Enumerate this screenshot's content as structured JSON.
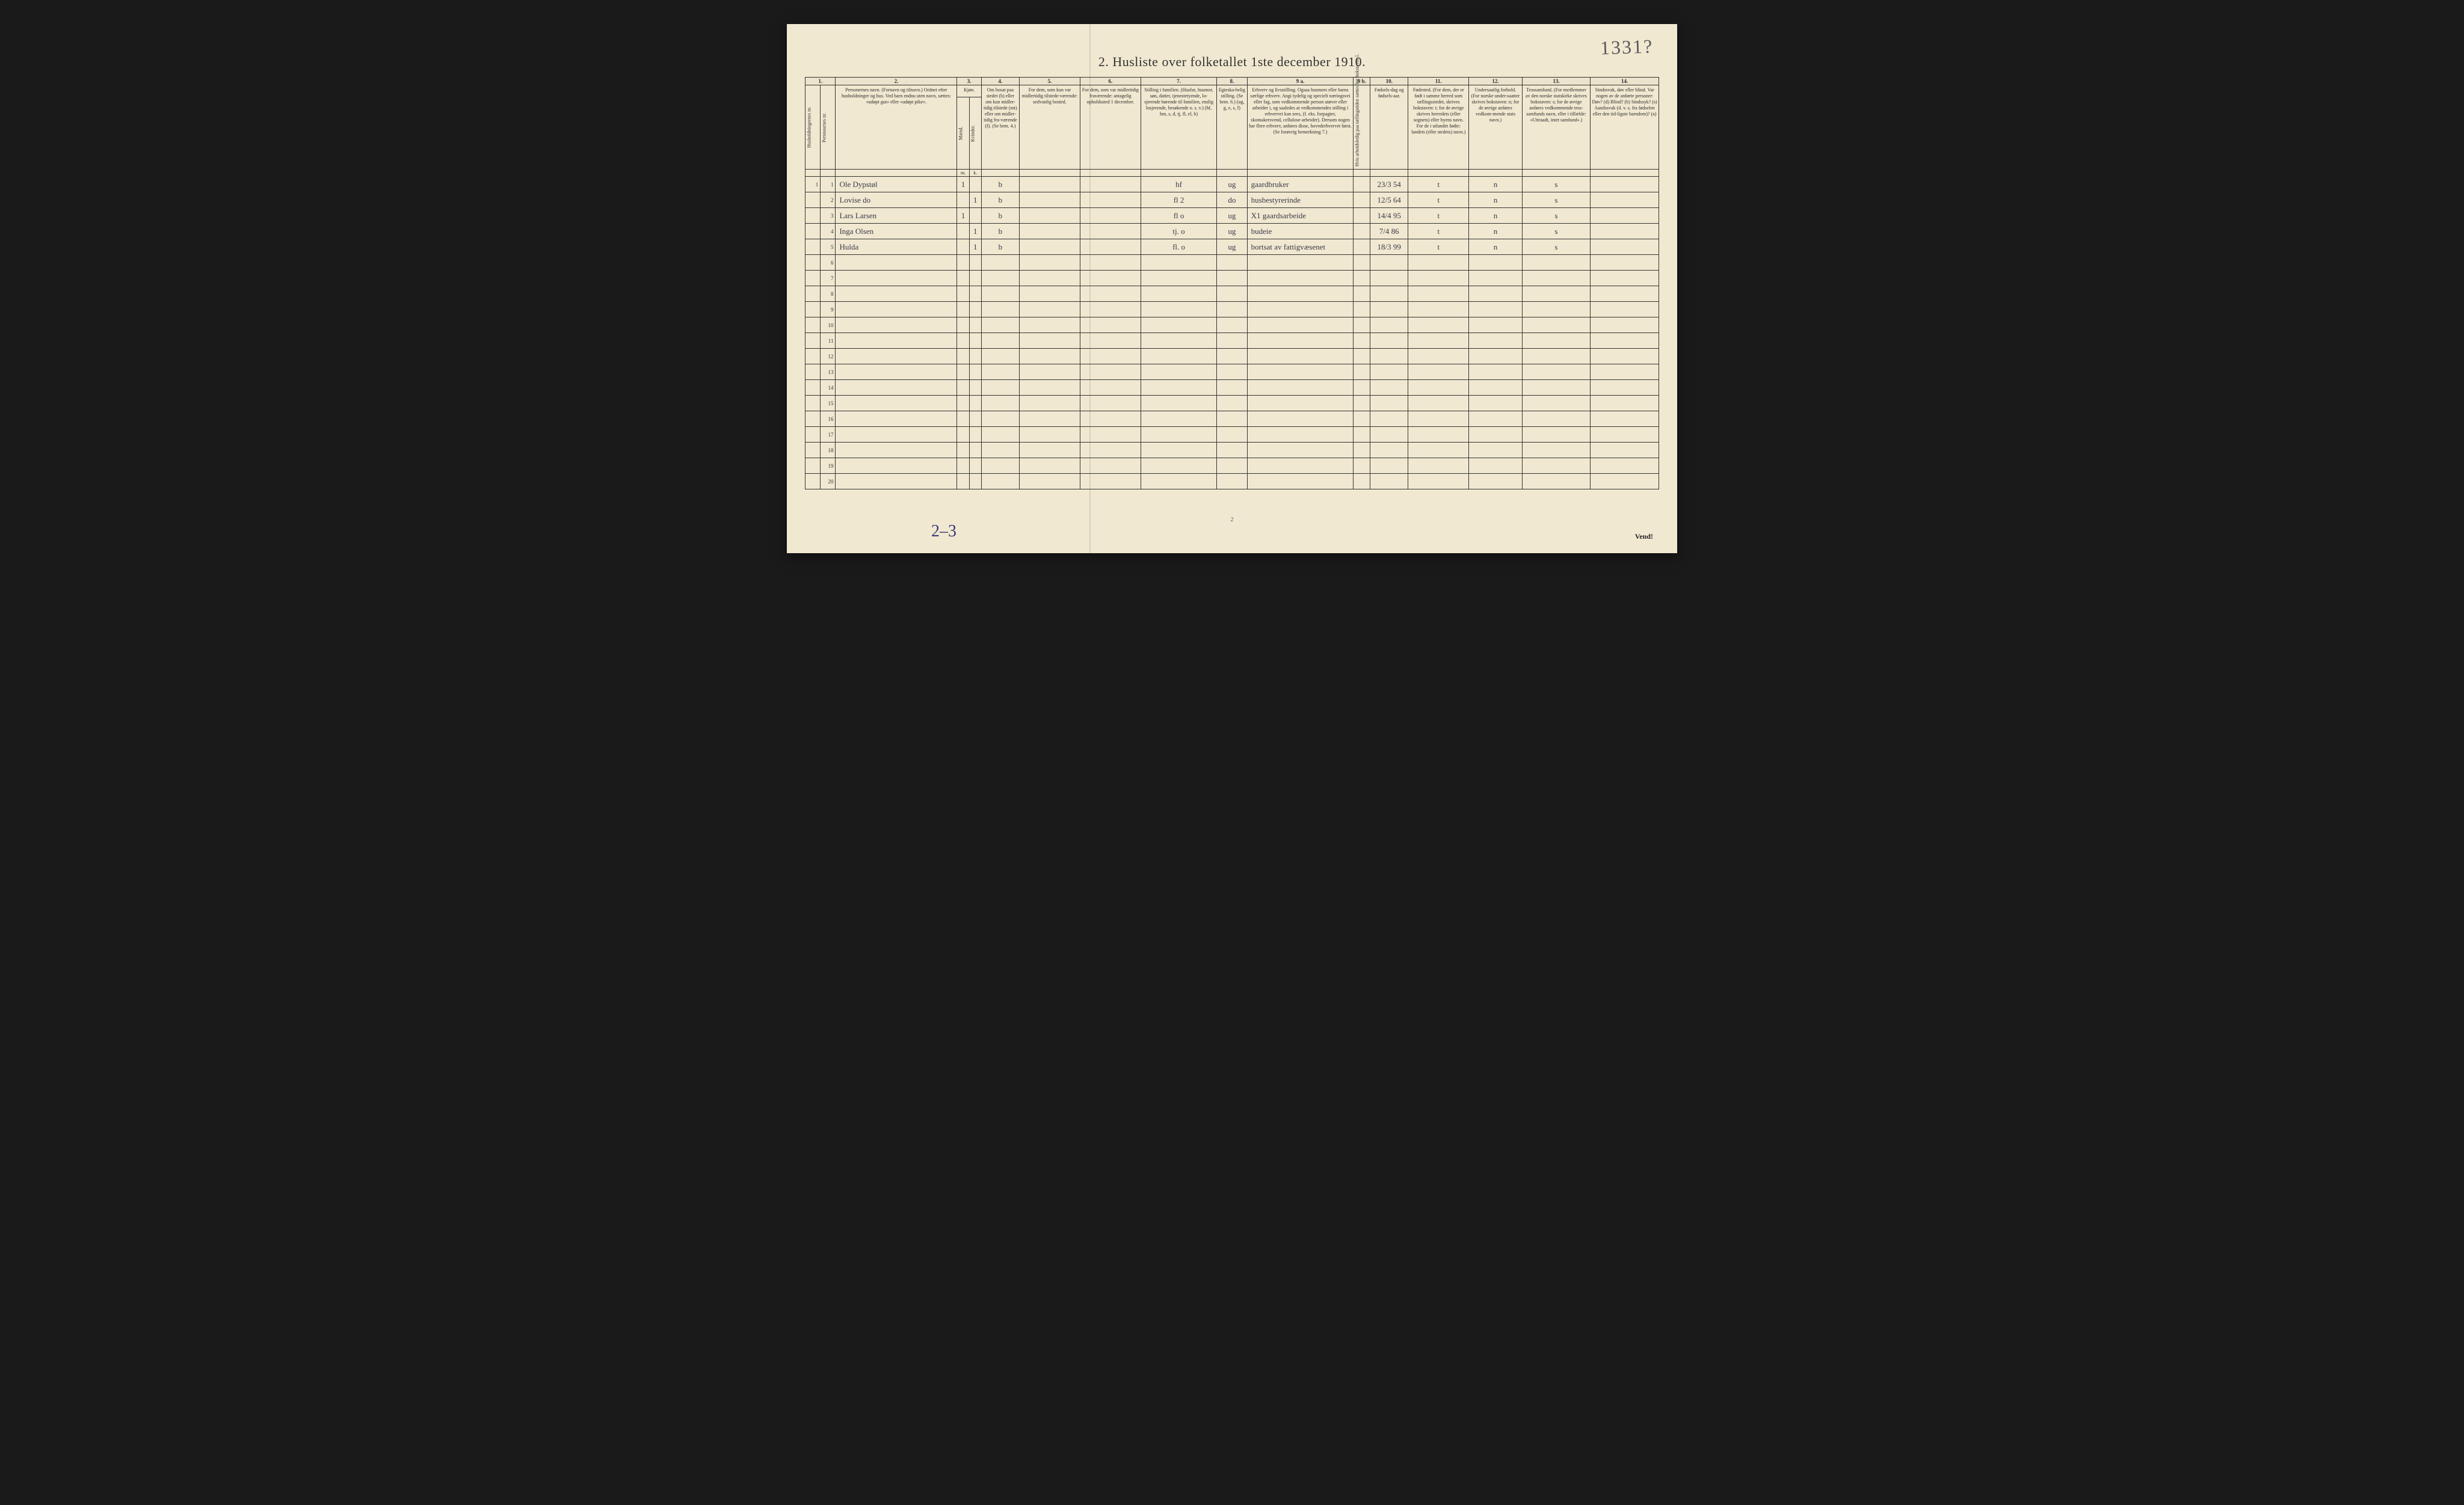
{
  "title": "2.  Husliste over folketallet 1ste december 1910.",
  "annotation_top_right": "1331?",
  "footer_annotation": "2–3",
  "page_number": "2",
  "vend": "Vend!",
  "colors": {
    "paper": "#f0e8d0",
    "ink": "#2a2a2a",
    "handwriting": "#3a3a4a",
    "blue_pencil": "#3a3a7a",
    "border": "#333333",
    "background": "#1a1a1a"
  },
  "typography": {
    "title_fontsize": 22,
    "header_fontsize": 8,
    "data_fontsize": 13,
    "annotation_fontsize": 32
  },
  "columns": {
    "nums": [
      "1.",
      "2.",
      "3.",
      "4.",
      "5.",
      "6.",
      "7.",
      "8.",
      "9 a.",
      "9 b.",
      "10.",
      "11.",
      "12.",
      "13.",
      "14."
    ],
    "widths_pct": [
      2,
      2,
      16,
      1.6,
      1.6,
      5,
      8,
      8,
      10,
      4,
      14,
      2.2,
      5,
      8,
      7,
      9,
      9
    ],
    "headers": {
      "c1a": "Husholdningernes nr.",
      "c1b": "Persnournes nr.",
      "c2": "Personernes navn.\n(Fornavn og tilnavn.)\nOrdnet efter husholdninger og hus.\nVed barn endnu uten navn, sættes: «udøpt gut» eller «udøpt pike».",
      "c3": "Kjøn.",
      "c3m": "Mænd.",
      "c3k": "Kvinder.",
      "c3sub_m": "m.",
      "c3sub_k": "k.",
      "c4": "Om bosat paa stedet (b) eller om kun midler-tidig tilstede (mt) eller om midler-tidig fra-værende (f).\n(Se bem. 4.)",
      "c5": "For dem, som kun var midlertidig tilstede-værende:\nsedvanlig bosted.",
      "c6": "For dem, som var midlertidig fraværende:\nantagelig opholdssted 1 december.",
      "c7": "Stilling i familien.\n(Husfar, husmor, søn, datter, tjenestetyende, lo-sjerende hørende til familien, enslig losjerende, besøkende o. s. v.)\n(hf, hm, s, d, tj, fl, el, b)",
      "c8": "Egteska-belig stilling.\n(Se bem. 6.)\n(ug, g, e, s, f)",
      "c9a": "Erhverv og livsstilling.\nOgsaa husmors eller barns særlige erhverv.\nAngi tydelig og specielt næringsvei eller fag, som vedkommende person utøver eller arbeider i, og saaledes at vedkommendes stilling i erhvervet kan sees, (f. eks. forpagter, skomakersvend, cellulose-arbeider). Dersom nogen har flere erhverv, anføres disse, hovederhvervet først.\n(Se forøvrig bemerkning 7.)",
      "c9b": "Hvis arbeidsledig paa tællingstiden sættes her bokstaven l.",
      "c10": "Fødsels-dag og fødsels-aar.",
      "c11": "Fødested.\n(For dem, der er født i samme herred som tællingsstedet, skrives bokstaven: t; for de øvrige skrives herredets (eller sognets) eller byens navn. For de i utlandet fødte: landets (eller stedets) navn.)",
      "c12": "Undersaatlig forhold.\n(For norske under-saatter skrives bokstaven: n; for de øvrige anføres vedkom-mende stats navn.)",
      "c13": "Trossamfund.\n(For medlemmer av den norske statskirke skrives bokstaven: s; for de øvrige anføres vedkommende tros-samfunds navn, eller i tilfælde: «Uttraadt, intet samfund».)",
      "c14": "Sindssvak, døv eller blind.\nVar nogen av de anførte personer:\nDøv?        (d)\nBlind?       (b)\nSindssyk?  (s)\nAandssvak (d. v. s. fra fødselen eller den tid-ligste barndom)?  (a)"
    }
  },
  "rows": [
    {
      "hh": "1",
      "pn": "1",
      "name": "Ole Dypstøl",
      "m": "1",
      "k": "",
      "bosat": "b",
      "c5": "",
      "c6": "",
      "stilling": "hf",
      "egte": "ug",
      "erhverv": "gaardbruker",
      "c9b": "",
      "fdato": "23/3 54",
      "fsted": "t",
      "c12": "n",
      "tros": "s",
      "c14": ""
    },
    {
      "hh": "",
      "pn": "2",
      "name": "Lovise   do",
      "m": "",
      "k": "1",
      "bosat": "b",
      "c5": "",
      "c6": "",
      "stilling": "fl   2",
      "egte": "do",
      "erhverv": "husbestyrerinde",
      "c9b": "",
      "fdato": "12/5 64",
      "fsted": "t",
      "c12": "n",
      "tros": "s",
      "c14": ""
    },
    {
      "hh": "",
      "pn": "3",
      "name": "Lars  Larsen",
      "m": "1",
      "k": "",
      "bosat": "b",
      "c5": "",
      "c6": "",
      "stilling": "fl   o",
      "egte": "ug",
      "erhverv": "X1  gaardsarbeide",
      "c9b": "",
      "fdato": "14/4 95",
      "fsted": "t",
      "c12": "n",
      "tros": "s",
      "c14": ""
    },
    {
      "hh": "",
      "pn": "4",
      "name": "Inga  Olsen",
      "m": "",
      "k": "1",
      "bosat": "b",
      "c5": "",
      "c6": "",
      "stilling": "tj.   o",
      "egte": "ug",
      "erhverv": "budeie",
      "c9b": "",
      "fdato": "7/4 86",
      "fsted": "t",
      "c12": "n",
      "tros": "s",
      "c14": ""
    },
    {
      "hh": "",
      "pn": "5",
      "name": "Hulda",
      "m": "",
      "k": "1",
      "bosat": "b",
      "c5": "",
      "c6": "",
      "stilling": "fl.   o",
      "egte": "ug",
      "erhverv": "bortsat av fattigvæsenet",
      "c9b": "",
      "fdato": "18/3 99",
      "fsted": "t",
      "c12": "n",
      "tros": "s",
      "c14": ""
    }
  ],
  "empty_row_count": 15,
  "total_rows": 20
}
